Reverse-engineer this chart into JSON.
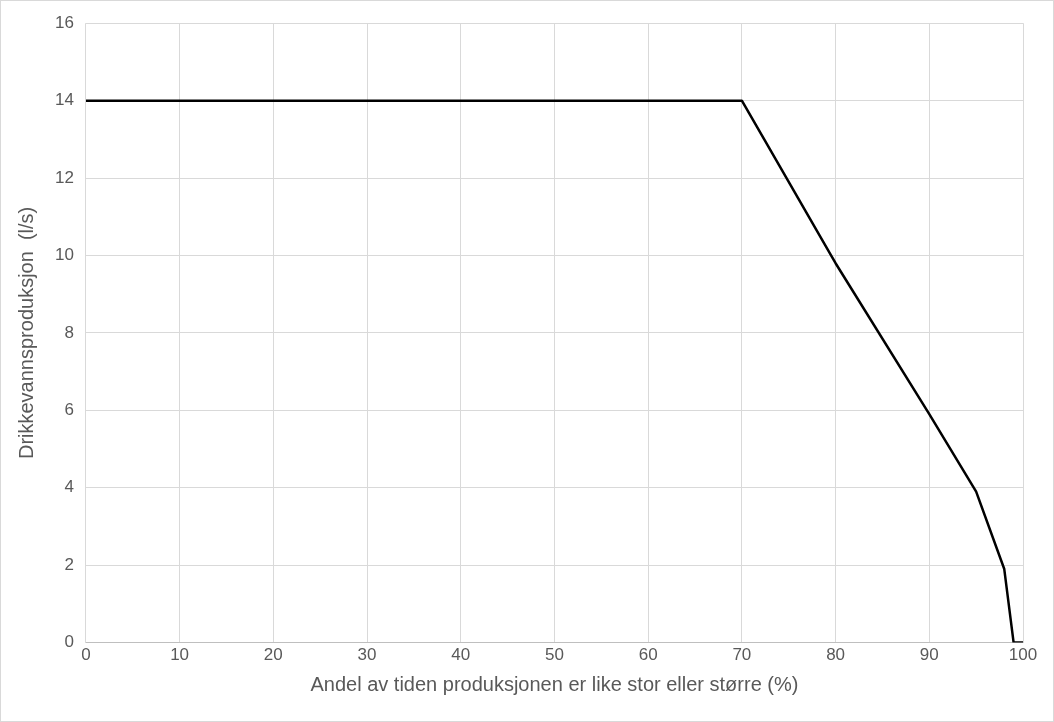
{
  "chart_data": {
    "type": "line",
    "xlabel": "Andel av tiden produksjonen er like stor eller større (%)",
    "ylabel": "Drikkevannsproduksjon  (l/s)",
    "x": [
      0,
      70,
      80,
      90,
      95,
      98,
      99,
      100
    ],
    "values": [
      14,
      14,
      9.8,
      5.9,
      3.9,
      1.9,
      0,
      0
    ],
    "color": "#000000",
    "marker": "none",
    "line_style": "solid",
    "grid": true,
    "legend": false,
    "xlim": [
      0,
      100
    ],
    "xticks": [
      0,
      10,
      20,
      30,
      40,
      50,
      60,
      70,
      80,
      90,
      100
    ],
    "ylim": [
      0,
      16
    ],
    "yticks": [
      0,
      2,
      4,
      6,
      8,
      10,
      12,
      14,
      16
    ]
  }
}
